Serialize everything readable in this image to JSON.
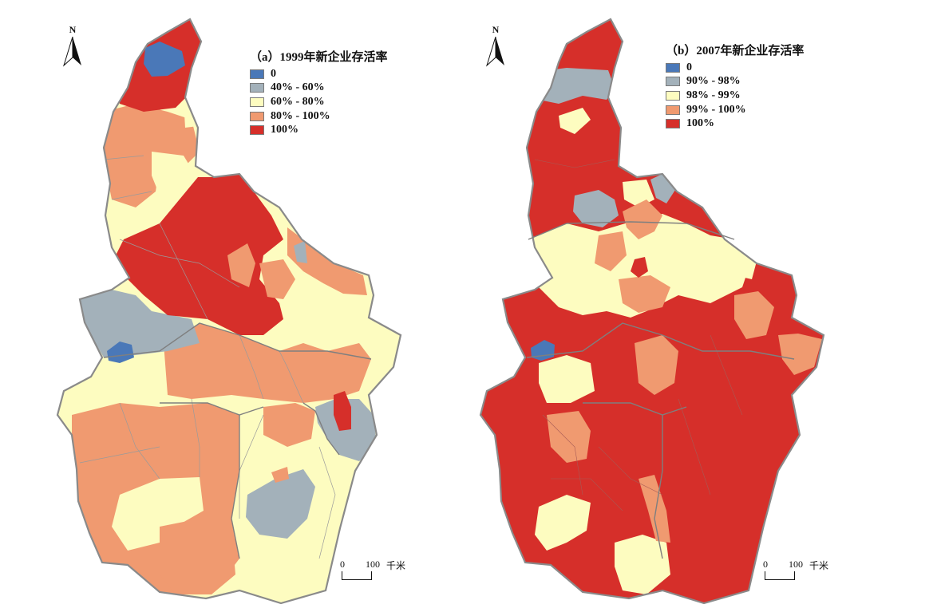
{
  "panels": [
    {
      "id": "a",
      "title": "（a）1999年新企业存活率",
      "north_label": "N",
      "legend": [
        {
          "label": "0",
          "color": "#4a78b8"
        },
        {
          "label": "40% - 60%",
          "color": "#a3b1ba"
        },
        {
          "label": "60% - 80%",
          "color": "#fdfcc0"
        },
        {
          "label": "80% - 100%",
          "color": "#f09a70"
        },
        {
          "label": "100%",
          "color": "#d62f2a"
        }
      ],
      "scale": {
        "zero": "0",
        "value": "100",
        "unit": "千米"
      }
    },
    {
      "id": "b",
      "title": "（b）2007年新企业存活率",
      "north_label": "N",
      "legend": [
        {
          "label": "0",
          "color": "#4a78b8"
        },
        {
          "label": "90% - 98%",
          "color": "#a3b1ba"
        },
        {
          "label": "98% - 99%",
          "color": "#fdfcc0"
        },
        {
          "label": "99% - 100%",
          "color": "#f09a70"
        },
        {
          "label": "100%",
          "color": "#d62f2a"
        }
      ],
      "scale": {
        "zero": "0",
        "value": "100",
        "unit": "千米"
      }
    }
  ],
  "colors": {
    "boundary": "#8a8a8a",
    "internal_line": "#9a9a9a"
  }
}
